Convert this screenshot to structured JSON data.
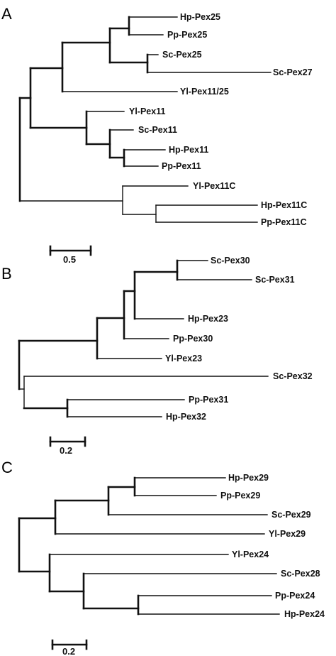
{
  "panels": [
    {
      "letter": "A",
      "scale_label": "0.5",
      "leaves": [
        "Hp-Pex25",
        "Pp-Pex25",
        "Sc-Pex25",
        "Sc-Pex27",
        "Yl-Pex11/25",
        "Yl-Pex11",
        "Sc-Pex11",
        "Hp-Pex11",
        "Pp-Pex11",
        "Yl-Pex11C",
        "Hp-Pex11C",
        "Pp-Pex11C"
      ]
    },
    {
      "letter": "B",
      "scale_label": "0.2",
      "leaves": [
        "Sc-Pex30",
        "Sc-Pex31",
        "Hp-Pex23",
        "Pp-Pex30",
        "Yl-Pex23",
        "Sc-Pex32",
        "Pp-Pex31",
        "Hp-Pex32"
      ]
    },
    {
      "letter": "C",
      "scale_label": "0.2",
      "leaves": [
        "Hp-Pex29",
        "Pp-Pex29",
        "Sc-Pex29",
        "Yl-Pex29",
        "Yl-Pex24",
        "Sc-Pex28",
        "Pp-Pex24",
        "Hp-Pex24"
      ]
    }
  ]
}
